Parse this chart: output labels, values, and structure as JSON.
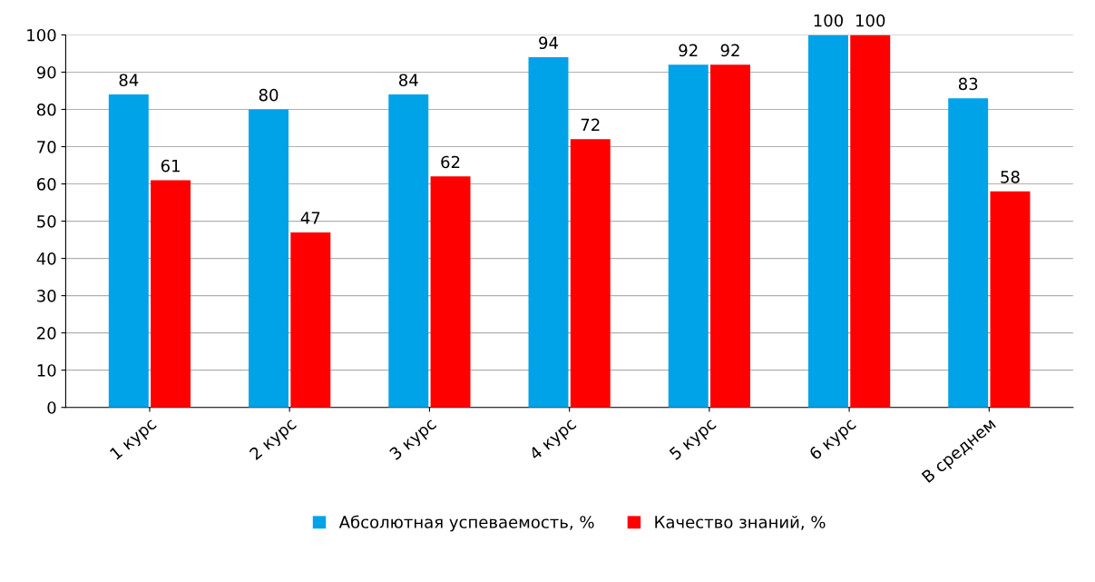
{
  "chart_data": {
    "type": "bar",
    "categories": [
      "1 курс",
      "2 курс",
      "3 курс",
      "4 курс",
      "5 курс",
      "6 курс",
      "В среднем"
    ],
    "series": [
      {
        "name": "Абсолютная успеваемость, %",
        "color": "#00a2e8",
        "values": [
          84,
          80,
          84,
          94,
          92,
          100,
          83
        ]
      },
      {
        "name": "Качество знаний, %",
        "color": "#ff0000",
        "values": [
          61,
          47,
          62,
          72,
          92,
          100,
          58
        ]
      }
    ],
    "ylim": [
      0,
      100
    ],
    "yticks": [
      0,
      10,
      20,
      30,
      40,
      50,
      60,
      70,
      80,
      90,
      100
    ],
    "grid": "y",
    "legend": "bottom",
    "data_labels": true
  }
}
